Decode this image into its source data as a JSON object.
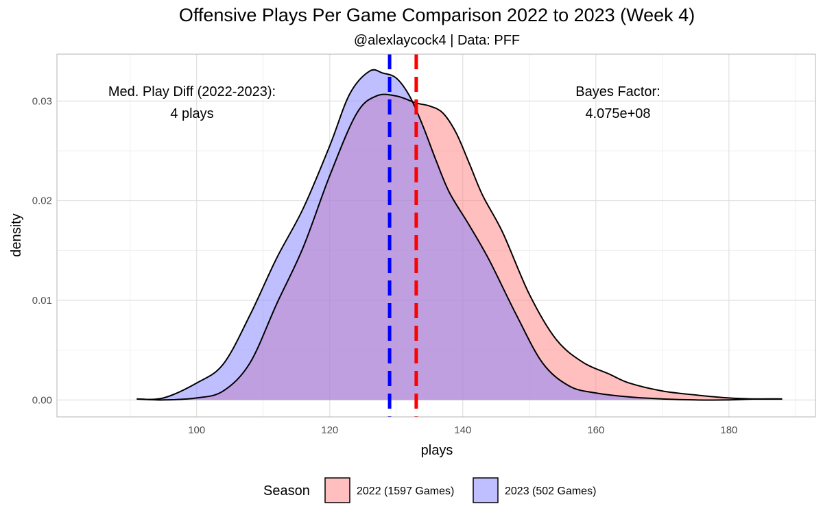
{
  "chart_data": {
    "type": "area",
    "title": "Offensive Plays Per Game Comparison 2022 to 2023 (Week 4)",
    "subtitle": "@alexlaycock4 | Data: PFF",
    "xlabel": "plays",
    "ylabel": "density",
    "xlim": [
      79,
      193
    ],
    "ylim": [
      -0.0017,
      0.0347
    ],
    "x_ticks": [
      100,
      120,
      140,
      160,
      180
    ],
    "x_tick_labels": [
      "100",
      "120",
      "140",
      "160",
      "180"
    ],
    "y_ticks": [
      0.0,
      0.01,
      0.02,
      0.03
    ],
    "y_tick_labels": [
      "0.00",
      "0.01",
      "0.02",
      "0.03"
    ],
    "grid": true,
    "series": [
      {
        "name": "2022",
        "color": "#ff8080",
        "x": [
          91,
          95,
          100,
          104,
          108,
          112,
          116,
          120,
          124,
          127,
          130,
          133,
          135,
          137,
          139,
          141,
          143,
          146,
          150,
          154,
          158,
          162,
          165,
          170,
          175,
          180,
          184,
          188
        ],
        "y": [
          0.0001,
          0.0,
          0.0002,
          0.0009,
          0.0037,
          0.0096,
          0.0153,
          0.0225,
          0.0287,
          0.0305,
          0.0305,
          0.0298,
          0.0295,
          0.0288,
          0.0268,
          0.0237,
          0.0205,
          0.0168,
          0.0106,
          0.0061,
          0.0038,
          0.0026,
          0.0017,
          0.0009,
          0.0005,
          0.0002,
          0.0001,
          0.0001
        ]
      },
      {
        "name": "2023",
        "color": "#8080ff",
        "x": [
          91,
          95,
          100,
          104,
          108,
          112,
          116,
          120,
          123,
          126,
          128,
          130,
          132,
          134,
          136,
          138,
          141,
          144,
          148,
          152,
          156,
          160,
          165,
          170,
          175,
          180,
          184,
          188
        ],
        "y": [
          0.0001,
          0.0002,
          0.0017,
          0.0036,
          0.0085,
          0.0142,
          0.0192,
          0.0255,
          0.0307,
          0.033,
          0.0328,
          0.0323,
          0.0305,
          0.0275,
          0.024,
          0.0208,
          0.0175,
          0.014,
          0.0086,
          0.0037,
          0.0014,
          0.0007,
          0.0003,
          0.0001,
          0.0,
          0.0,
          0.0001,
          0.0001
        ]
      }
    ],
    "medians": [
      {
        "season": "2022",
        "x": 133,
        "color": "#ff0000"
      },
      {
        "season": "2023",
        "x": 129,
        "color": "#0000ff"
      }
    ],
    "annotations": {
      "left_line1": "Med. Play Diff (2022-2023):",
      "left_line2": "4 plays",
      "right_line1": "Bayes Factor:",
      "right_line2": "4.075e+08"
    },
    "legend": {
      "position": "bottom",
      "title": "Season",
      "items": [
        {
          "label": "2022 (1597 Games)",
          "color": "#ffbfbf"
        },
        {
          "label": "2023 (502 Games)",
          "color": "#bfbfff"
        }
      ]
    }
  }
}
